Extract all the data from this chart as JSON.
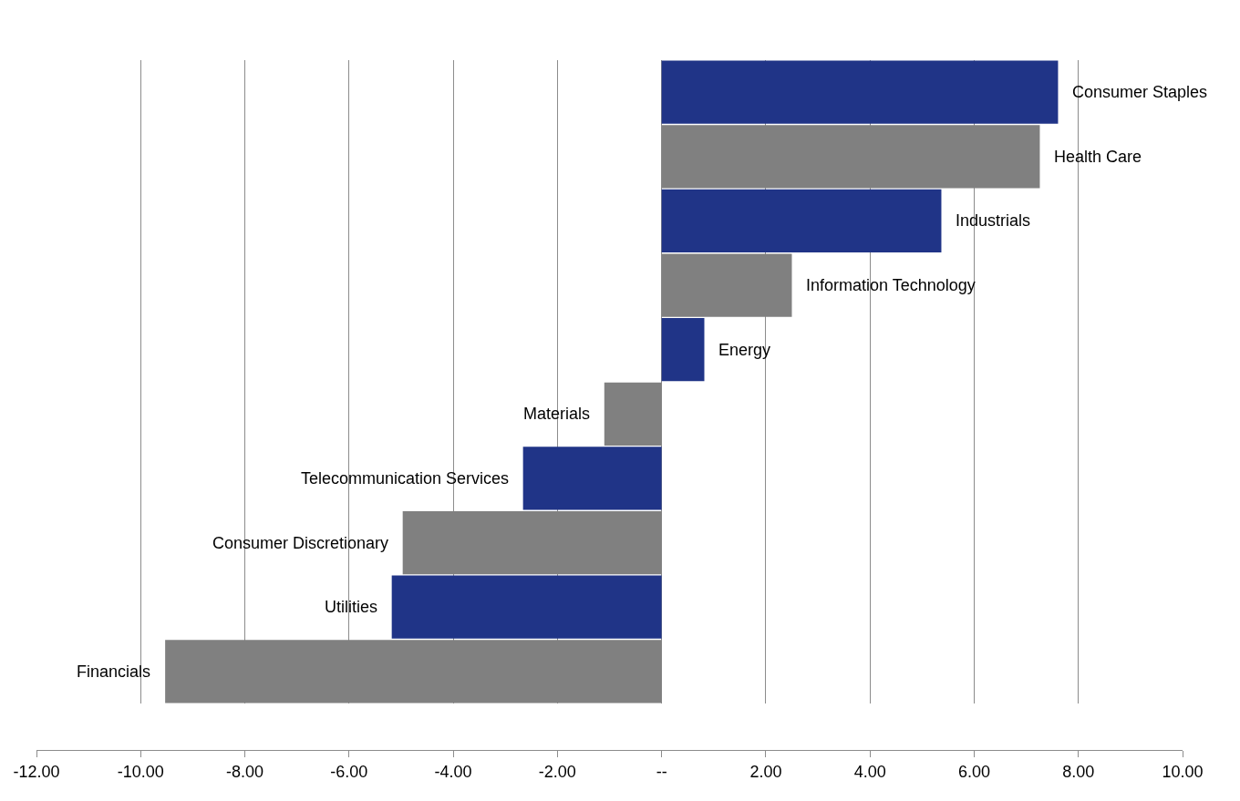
{
  "chart_data": {
    "type": "bar",
    "orientation": "horizontal",
    "categories": [
      "Consumer Staples",
      "Health Care",
      "Industrials",
      "Information Technology",
      "Energy",
      "Materials",
      "Telecommunication Services",
      "Consumer Discretionary",
      "Utilities",
      "Financials"
    ],
    "values": [
      7.61,
      7.26,
      5.37,
      2.5,
      0.82,
      -1.1,
      -2.66,
      -4.97,
      -5.18,
      -9.53
    ],
    "colors": [
      "#203487",
      "#808080",
      "#203487",
      "#808080",
      "#203487",
      "#808080",
      "#203487",
      "#808080",
      "#203487",
      "#808080"
    ],
    "xlim": [
      -12,
      10
    ],
    "xticks": [
      {
        "value": -12,
        "label": "-12.00"
      },
      {
        "value": -10,
        "label": "-10.00"
      },
      {
        "value": -8,
        "label": "-8.00"
      },
      {
        "value": -6,
        "label": "-6.00"
      },
      {
        "value": -4,
        "label": "-4.00"
      },
      {
        "value": -2,
        "label": "-2.00"
      },
      {
        "value": 0,
        "label": "--"
      },
      {
        "value": 2,
        "label": "2.00"
      },
      {
        "value": 4,
        "label": "4.00"
      },
      {
        "value": 6,
        "label": "6.00"
      },
      {
        "value": 8,
        "label": "8.00"
      },
      {
        "value": 10,
        "label": "10.00"
      }
    ],
    "grid": "x",
    "tick_labels": "x",
    "legend": false
  }
}
